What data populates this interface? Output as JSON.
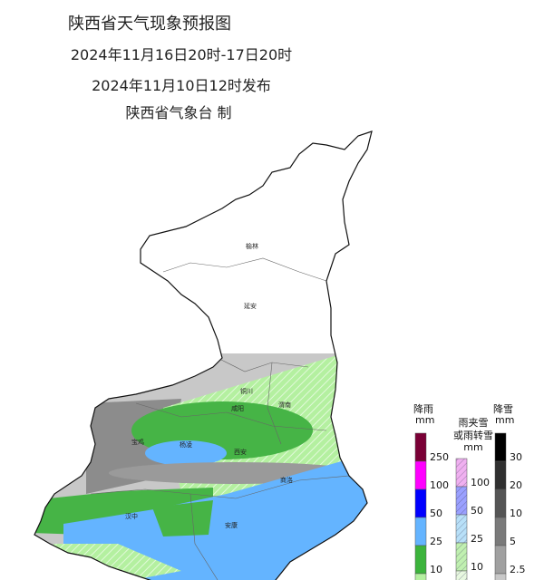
{
  "header": {
    "title": "陕西省天气现象预报图",
    "period": "2024年11月16日20时-17日20时",
    "issued": "2024年11月10日12时发布",
    "issuer": "陕西省气象台 制"
  },
  "cities": [
    {
      "label": "榆林"
    },
    {
      "label": "延安"
    },
    {
      "label": "铜川"
    },
    {
      "label": "渭南"
    },
    {
      "label": "咸阳"
    },
    {
      "label": "宝鸡"
    },
    {
      "label": "杨凌"
    },
    {
      "label": "西安"
    },
    {
      "label": "商洛"
    },
    {
      "label": "汉中"
    },
    {
      "label": "安康"
    }
  ],
  "legend": {
    "rain": {
      "title": "降雨",
      "unit": "mm",
      "labels": [
        250,
        100,
        50,
        25,
        10
      ]
    },
    "sleet": {
      "title": [
        "雨夹雪",
        "或雨转雪"
      ],
      "unit": "mm",
      "labels": [
        100,
        50,
        25,
        10
      ]
    },
    "snow": {
      "title": "降雪",
      "unit": "mm",
      "labels": [
        30,
        20,
        10,
        5,
        2.5
      ]
    }
  }
}
